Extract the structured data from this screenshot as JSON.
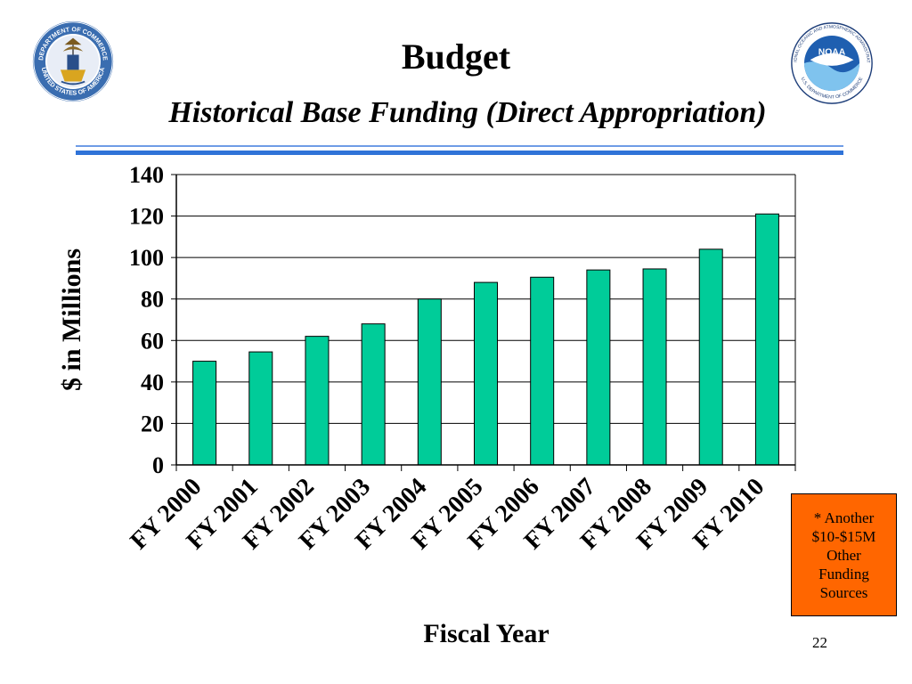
{
  "slide": {
    "title": "Budget",
    "subtitle": "Historical Base Funding (Direct Appropriation)",
    "note_lines": [
      "* Another",
      "$10-$15M",
      "Other",
      "Funding",
      "Sources"
    ],
    "page_number": "22"
  },
  "logos": {
    "left": "department-of-commerce-seal",
    "left_text": "DEPARTMENT OF COMMERCE · UNITED STATES OF AMERICA",
    "right": "noaa-logo",
    "right_text": "NOAA · NATIONAL OCEANIC AND ATMOSPHERIC ADMINISTRATION · U.S. DEPARTMENT OF COMMERCE"
  },
  "colors": {
    "bar": "#00cc99",
    "note_background": "#ff6600",
    "rule": "#2f73d8",
    "noaa_blue": "#1f5fb0",
    "seal_blue": "#3a6db0"
  },
  "chart_data": {
    "type": "bar",
    "title": "",
    "xlabel": "Fiscal Year",
    "ylabel": "$ in Millions",
    "categories": [
      "FY 2000",
      "FY 2001",
      "FY 2002",
      "FY 2003",
      "FY 2004",
      "FY 2005",
      "FY 2006",
      "FY 2007",
      "FY 2008",
      "FY 2009",
      "FY 2010"
    ],
    "values": [
      50,
      54.5,
      62,
      68,
      80,
      88,
      90.5,
      94,
      94.5,
      104,
      121
    ],
    "ylim": [
      0,
      140
    ],
    "yticks": [
      0,
      20,
      40,
      60,
      80,
      100,
      120,
      140
    ],
    "grid": true,
    "legend": "none"
  }
}
